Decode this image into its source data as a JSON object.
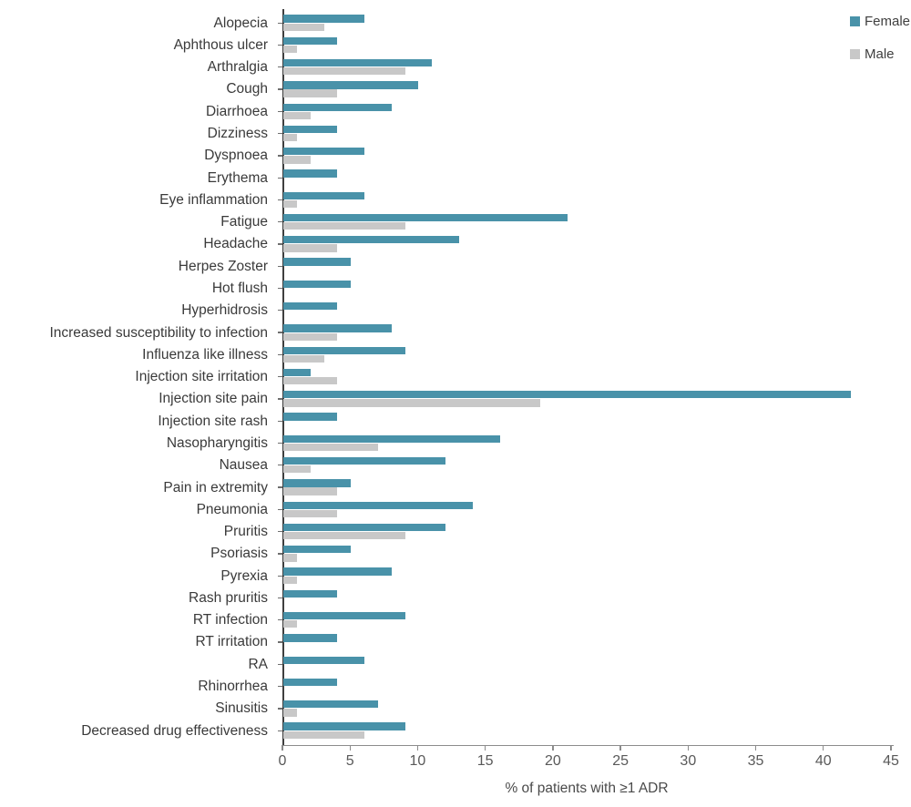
{
  "chart_data": {
    "type": "bar",
    "orientation": "horizontal",
    "title": "",
    "xlabel": "% of patients with ≥1 ADR",
    "ylabel": "",
    "xlim": [
      0,
      45
    ],
    "xticks": [
      0,
      5,
      10,
      15,
      20,
      25,
      30,
      35,
      40,
      45
    ],
    "grid": false,
    "legend_position": "top-right",
    "categories": [
      "Alopecia",
      "Aphthous ulcer",
      "Arthralgia",
      "Cough",
      "Diarrhoea",
      "Dizziness",
      "Dyspnoea",
      "Erythema",
      "Eye inflammation",
      "Fatigue",
      "Headache",
      "Herpes Zoster",
      "Hot flush",
      "Hyperhidrosis",
      "Increased susceptibility to infection",
      "Influenza like illness",
      "Injection site irritation",
      "Injection site pain",
      "Injection site rash",
      "Nasopharyngitis",
      "Nausea",
      "Pain in extremity",
      "Pneumonia",
      "Pruritis",
      "Psoriasis",
      "Pyrexia",
      "Rash pruritis",
      "RT infection",
      "RT irritation",
      "RA",
      "Rhinorrhea",
      "Sinusitis",
      "Decreased drug effectiveness"
    ],
    "series": [
      {
        "name": "Female",
        "color": "#4992a9",
        "values": [
          6,
          4,
          11,
          10,
          8,
          4,
          6,
          4,
          6,
          21,
          13,
          5,
          5,
          4,
          8,
          9,
          2,
          42,
          4,
          16,
          12,
          5,
          14,
          12,
          5,
          8,
          4,
          9,
          4,
          6,
          4,
          7,
          9
        ]
      },
      {
        "name": "Male",
        "color": "#c8c8c8",
        "values": [
          3,
          1,
          9,
          4,
          2,
          1,
          2,
          0,
          1,
          9,
          4,
          0,
          0,
          0,
          4,
          3,
          4,
          19,
          0,
          7,
          2,
          4,
          4,
          9,
          1,
          1,
          0,
          1,
          0,
          0,
          0,
          1,
          6
        ]
      }
    ]
  },
  "colors": {
    "female_bar": "#4992a9",
    "male_bar": "#c8c8c8",
    "category_text": "#3a3a3a",
    "tick_text": "#595959",
    "y_axis_line": "#3f3f3f",
    "x_axis_line": "#8c8c8c",
    "background": "#ffffff"
  }
}
